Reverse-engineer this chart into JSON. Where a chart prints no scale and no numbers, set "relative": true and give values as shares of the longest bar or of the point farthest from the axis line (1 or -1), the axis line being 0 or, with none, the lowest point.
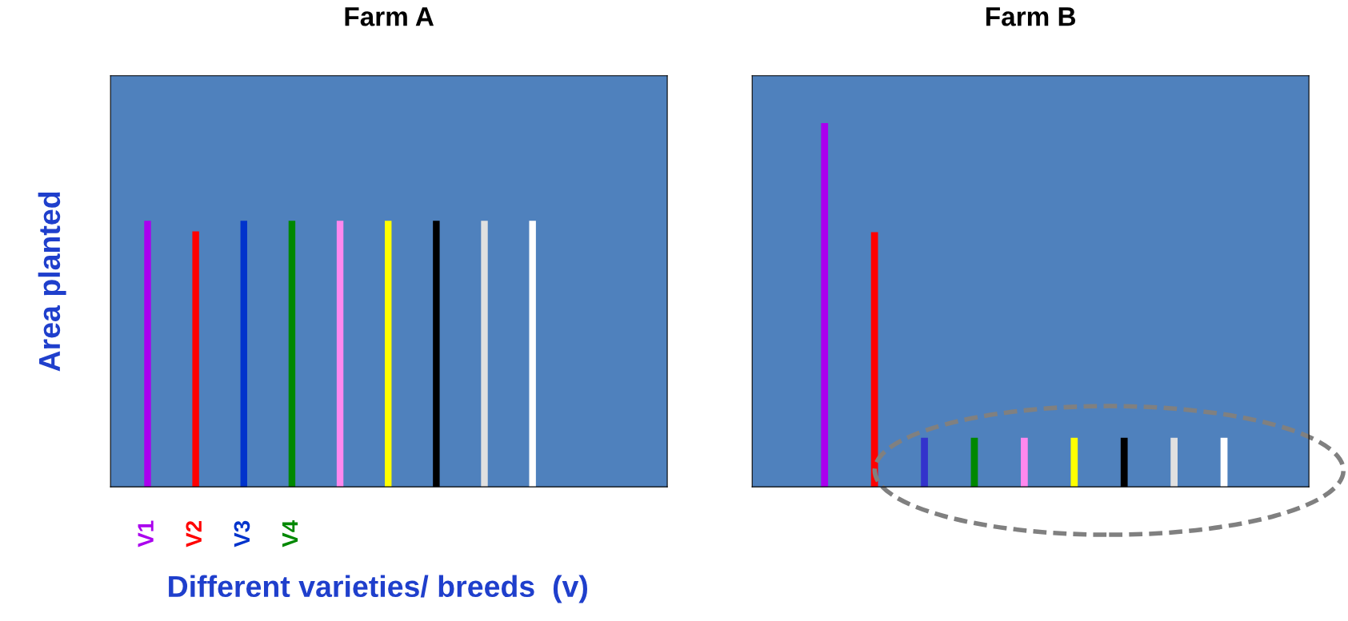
{
  "chart_data": [
    {
      "type": "bar",
      "title": "Farm A",
      "xlabel": "Different varieties/ breeds  (v)",
      "ylabel": "Area planted",
      "relative": true,
      "tick_labels": "x",
      "categories": [
        "V1",
        "V2",
        "V3",
        "V4",
        null,
        null,
        null,
        null,
        null
      ],
      "values": [
        1,
        0.96,
        1,
        1,
        1,
        1,
        1,
        1,
        1
      ],
      "colors": [
        "#aa00ee",
        "#ff0000",
        "#0033cc",
        "#008800",
        "#ff88ee",
        "#ffff00",
        "#000000",
        "#e0e0e0",
        "#ffffff"
      ]
    },
    {
      "type": "bar",
      "title": "Farm B",
      "relative": true,
      "tick_labels": false,
      "categories": [
        null,
        null,
        null,
        null,
        null,
        null,
        null,
        null,
        null
      ],
      "values": [
        1,
        0.7,
        0.135,
        0.135,
        0.135,
        0.135,
        0.135,
        0.135,
        0.135
      ],
      "colors": [
        "#aa00ee",
        "#ff0000",
        "#3333cc",
        "#008800",
        "#ff88ee",
        "#ffff00",
        "#000000",
        "#e0e0e0",
        "#ffffff"
      ]
    }
  ]
}
